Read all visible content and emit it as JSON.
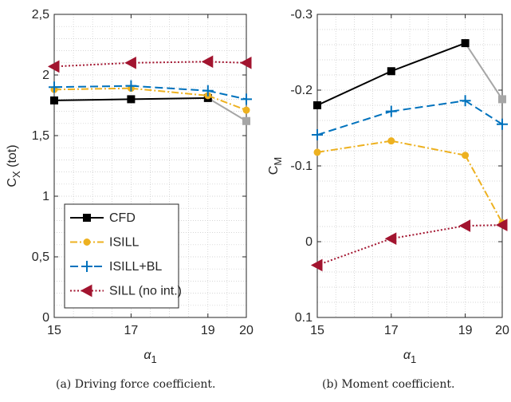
{
  "chart_data": [
    {
      "type": "line",
      "panel": "a",
      "ylabel_main": "C",
      "ylabel_sub": "X",
      "ylabel_suffix": " (tot)",
      "xlabel_main": "α",
      "xlabel_sub": "1",
      "x": [
        15,
        17,
        19,
        20
      ],
      "xticks": [
        "15",
        "17",
        "19",
        "20"
      ],
      "xlim": [
        15,
        20
      ],
      "ylim": [
        0,
        2.5
      ],
      "yticks": [
        0,
        0.5,
        1,
        1.5,
        2,
        2.5
      ],
      "ytick_labels": [
        "0",
        "0,5",
        "1",
        "1,5",
        "2",
        "2,5"
      ],
      "y_reversed": false,
      "grid": "minor dotted",
      "legend": "bottom-left",
      "series": [
        {
          "name": "CFD",
          "values": [
            1.79,
            1.8,
            1.81,
            1.62
          ],
          "color": "#000000",
          "tail_color": "#a6a6a6",
          "style": "solid",
          "marker": "square"
        },
        {
          "name": "ISILL",
          "values": [
            1.88,
            1.89,
            1.83,
            1.71
          ],
          "color": "#EDB120",
          "style": "dashdot",
          "marker": "circle"
        },
        {
          "name": "ISILL+BL",
          "values": [
            1.9,
            1.91,
            1.87,
            1.8
          ],
          "color": "#0072BD",
          "style": "dashed",
          "marker": "plus"
        },
        {
          "name": "SILL (no int.)",
          "values": [
            2.07,
            2.1,
            2.11,
            2.1
          ],
          "color": "#A2142F",
          "style": "dotted",
          "marker": "triangle-left"
        }
      ]
    },
    {
      "type": "line",
      "panel": "b",
      "ylabel_main": "C",
      "ylabel_sub": "M",
      "ylabel_suffix": "",
      "xlabel_main": "α",
      "xlabel_sub": "1",
      "x": [
        15,
        17,
        19,
        20
      ],
      "xticks": [
        "15",
        "17",
        "19",
        "20"
      ],
      "xlim": [
        15,
        20
      ],
      "ylim": [
        -0.3,
        0.1
      ],
      "yticks": [
        -0.3,
        -0.2,
        -0.1,
        0,
        0.1
      ],
      "ytick_labels": [
        "-0.3",
        "-0.2",
        "-0.1",
        "0",
        "0.1"
      ],
      "y_reversed": true,
      "grid": "minor dotted",
      "legend": "none",
      "series": [
        {
          "name": "CFD",
          "values": [
            -0.18,
            -0.225,
            -0.262,
            -0.188
          ],
          "color": "#000000",
          "tail_color": "#a6a6a6",
          "style": "solid",
          "marker": "square"
        },
        {
          "name": "ISILL",
          "values": [
            -0.118,
            -0.133,
            -0.114,
            -0.025
          ],
          "color": "#EDB120",
          "style": "dashdot",
          "marker": "circle"
        },
        {
          "name": "ISILL+BL",
          "values": [
            -0.141,
            -0.172,
            -0.186,
            -0.155
          ],
          "color": "#0072BD",
          "style": "dashed",
          "marker": "plus"
        },
        {
          "name": "SILL (no int.)",
          "values": [
            0.031,
            -0.004,
            -0.021,
            -0.022
          ],
          "color": "#A2142F",
          "style": "dotted",
          "marker": "triangle-left"
        }
      ]
    }
  ],
  "captions": {
    "a": "(a) Driving force coefficient.",
    "b": "(b) Moment coefficient."
  }
}
